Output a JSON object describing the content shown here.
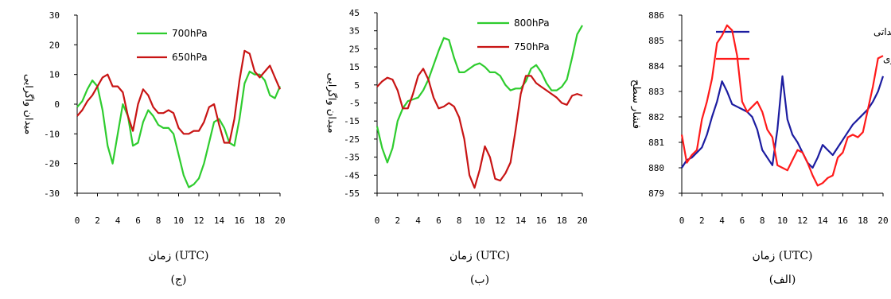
{
  "chart_data": [
    {
      "type": "line",
      "caption": "(ج)",
      "xlabel": "زمان (UTC)",
      "ylabel": "میدان واگرایی",
      "ylim": [
        -30,
        30
      ],
      "yticks": [
        -30,
        -20,
        -10,
        0,
        10,
        20,
        30
      ],
      "xticks": [
        0,
        2,
        4,
        6,
        8,
        10,
        12,
        14,
        16,
        18,
        20
      ],
      "legend_position": "top-center",
      "x": [
        0,
        0.5,
        1,
        1.5,
        2,
        2.5,
        3,
        3.5,
        4,
        4.5,
        5,
        5.5,
        6,
        6.5,
        7,
        7.5,
        8,
        8.5,
        9,
        9.5,
        10,
        10.5,
        11,
        11.5,
        12,
        12.5,
        13,
        13.5,
        14,
        14.5,
        15,
        15.5,
        16,
        16.5,
        17,
        17.5,
        18,
        18.5,
        19,
        19.5,
        20
      ],
      "series": [
        {
          "name": "700hPa",
          "color": "#2ecc2e",
          "values": [
            -1,
            1,
            5,
            8,
            6,
            -2,
            -14,
            -20,
            -10,
            0,
            -4,
            -14,
            -13,
            -6,
            -2,
            -4,
            -7,
            -8,
            -8,
            -10,
            -17,
            -24,
            -28,
            -27,
            -25,
            -20,
            -13,
            -6,
            -5,
            -8,
            -13,
            -14,
            -5,
            7,
            11,
            10,
            10,
            8,
            3,
            2,
            6
          ]
        },
        {
          "name": "650hPa",
          "color": "#c81414",
          "values": [
            -4,
            -2,
            1,
            3,
            6,
            9,
            10,
            6,
            6,
            4,
            -4,
            -9,
            0,
            5,
            3,
            -1,
            -3,
            -3,
            -2,
            -3,
            -8,
            -10,
            -10,
            -9,
            -9,
            -6,
            -1,
            0,
            -7,
            -13,
            -13,
            -5,
            8,
            18,
            17,
            11,
            9,
            11,
            13,
            9,
            5
          ]
        }
      ]
    },
    {
      "type": "line",
      "caption": "(ب)",
      "xlabel": "زمان (UTC)",
      "ylabel": "میدان واگرایی",
      "ylim": [
        -55,
        45
      ],
      "yticks": [
        -55,
        -45,
        -35,
        -25,
        -15,
        -5,
        5,
        15,
        25,
        35,
        45
      ],
      "xticks": [
        0,
        2,
        4,
        6,
        8,
        10,
        12,
        14,
        16,
        18,
        20
      ],
      "legend_position": "top-right",
      "x": [
        0,
        0.5,
        1,
        1.5,
        2,
        2.5,
        3,
        3.5,
        4,
        4.5,
        5,
        5.5,
        6,
        6.5,
        7,
        7.5,
        8,
        8.5,
        9,
        9.5,
        10,
        10.5,
        11,
        11.5,
        12,
        12.5,
        13,
        13.5,
        14,
        14.5,
        15,
        15.5,
        16,
        16.5,
        17,
        17.5,
        18,
        18.5,
        19,
        19.5,
        20
      ],
      "series": [
        {
          "name": "800hPa",
          "color": "#2ecc2e",
          "values": [
            -18,
            -30,
            -38,
            -30,
            -15,
            -8,
            -4,
            -3,
            -2,
            2,
            8,
            16,
            24,
            31,
            30,
            20,
            12,
            12,
            14,
            16,
            17,
            15,
            12,
            12,
            10,
            5,
            2,
            3,
            3,
            7,
            14,
            16,
            12,
            6,
            2,
            2,
            4,
            8,
            20,
            33,
            38
          ]
        },
        {
          "name": "750hPa",
          "color": "#c81414",
          "values": [
            4,
            7,
            9,
            8,
            2,
            -8,
            -8,
            0,
            10,
            14,
            8,
            -2,
            -8,
            -7,
            -5,
            -7,
            -13,
            -25,
            -45,
            -52,
            -42,
            -29,
            -35,
            -47,
            -48,
            -44,
            -38,
            -20,
            0,
            10,
            10,
            6,
            4,
            2,
            0,
            -2,
            -5,
            -6,
            -1,
            0,
            -1
          ]
        }
      ]
    },
    {
      "type": "line",
      "caption": "(الف)",
      "xlabel": "زمان (UTC)",
      "ylabel": "فشار سطح",
      "ylim": [
        879,
        886
      ],
      "yticks": [
        879,
        880,
        881,
        882,
        883,
        884,
        885,
        886
      ],
      "xticks": [
        0,
        2,
        4,
        6,
        8,
        10,
        12,
        14,
        16,
        18,
        20
      ],
      "legend_position": "top-right",
      "x": [
        0,
        0.5,
        1,
        1.5,
        2,
        2.5,
        3,
        3.5,
        4,
        4.5,
        5,
        5.5,
        6,
        6.5,
        7,
        7.5,
        8,
        8.5,
        9,
        9.5,
        10,
        10.5,
        11,
        11.5,
        12,
        12.5,
        13,
        13.5,
        14,
        14.5,
        15,
        15.5,
        16,
        16.5,
        17,
        17.5,
        18,
        18.5,
        19,
        19.5,
        20
      ],
      "series": [
        {
          "name": "فشار مشاهداتی",
          "color": "#1c1ca0",
          "values": [
            880,
            880.3,
            880.4,
            880.6,
            880.8,
            881.3,
            882,
            882.6,
            883.4,
            883,
            882.5,
            882.4,
            882.3,
            882.2,
            882,
            881.5,
            880.7,
            880.4,
            880.1,
            881.5,
            883.6,
            881.9,
            881.3,
            881,
            880.6,
            880.2,
            880,
            880.4,
            880.9,
            880.7,
            880.5,
            880.8,
            881.1,
            881.4,
            881.7,
            881.9,
            882.1,
            882.3,
            882.6,
            883,
            883.6
          ]
        },
        {
          "name": "فشار شبیه سازی",
          "color": "#ff1a1a",
          "values": [
            881.3,
            880.2,
            880.5,
            880.7,
            881.9,
            882.6,
            883.5,
            884.9,
            885.2,
            885.6,
            885.4,
            884.4,
            882.6,
            882.2,
            882.4,
            882.6,
            882.2,
            881.5,
            881.2,
            880.1,
            880,
            879.9,
            880.3,
            880.7,
            880.6,
            880.2,
            879.7,
            879.3,
            879.4,
            879.6,
            879.7,
            880.4,
            880.6,
            881.2,
            881.3,
            881.2,
            881.4,
            882.3,
            883.2,
            884.3,
            884.4
          ]
        }
      ]
    }
  ]
}
